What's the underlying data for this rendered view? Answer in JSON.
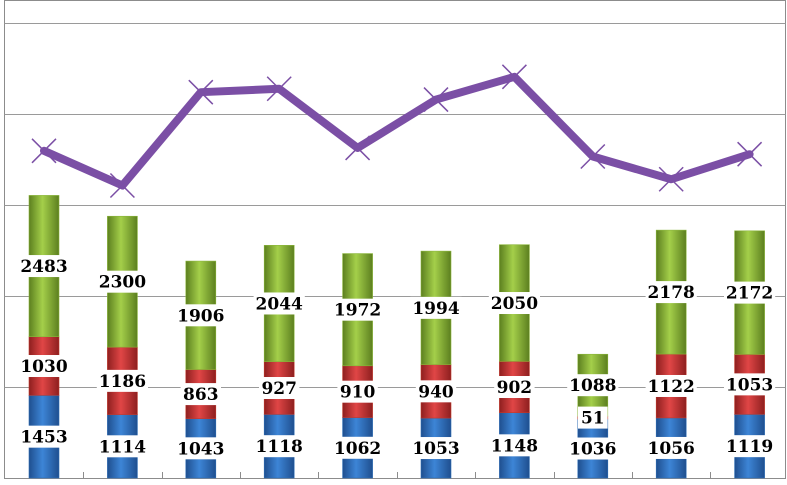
{
  "chart_data": {
    "type": "bar",
    "stacked": true,
    "title": "",
    "xlabel": "",
    "ylabel": "",
    "grid": true,
    "legend": "none",
    "categories": [
      "",
      "",
      "",
      "",
      "",
      "",
      "",
      "",
      "",
      ""
    ],
    "series": [
      {
        "color": "#2e6db4",
        "values": [
          1453,
          1114,
          1043,
          1118,
          1062,
          1053,
          1148,
          1036,
          1056,
          1119
        ]
      },
      {
        "color": "#c0392b",
        "values": [
          1030,
          1186,
          863,
          927,
          910,
          940,
          902,
          51,
          1122,
          1053
        ]
      },
      {
        "color": "#8ab53a",
        "values": [
          2483,
          2300,
          1906,
          2044,
          1972,
          1994,
          2050,
          1088,
          2178,
          2172
        ]
      }
    ],
    "line": {
      "color": "#7b4fa5",
      "values": [
        5750,
        5140,
        6780,
        6840,
        5800,
        6650,
        7050,
        5650,
        5250,
        5690
      ],
      "marker": "x"
    },
    "ylim": [
      0,
      8400
    ]
  }
}
